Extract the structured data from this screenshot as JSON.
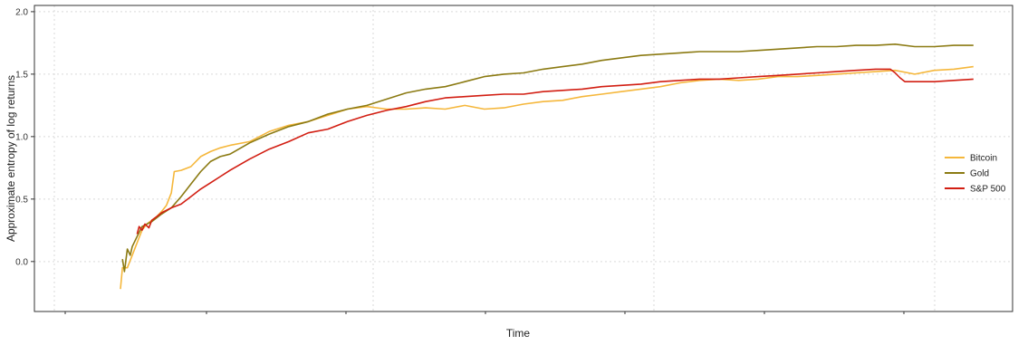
{
  "chart_data": {
    "type": "line",
    "title": "",
    "xlabel": "Time",
    "ylabel": "Approximate entropy of log returns",
    "x_range": [
      0,
      1
    ],
    "ylim": [
      -0.4,
      2.05
    ],
    "yticks": [
      0.0,
      0.5,
      1.0,
      1.5,
      2.0
    ],
    "ytick_labels": [
      "0.0",
      "0.5",
      "1.0",
      "1.5",
      "2.0"
    ],
    "grid": true,
    "legend_position": "right",
    "series": [
      {
        "name": "Bitcoin",
        "color": "#F5B73B",
        "points": [
          [
            0.088,
            -0.22
          ],
          [
            0.09,
            -0.05
          ],
          [
            0.095,
            -0.05
          ],
          [
            0.1,
            0.05
          ],
          [
            0.105,
            0.15
          ],
          [
            0.11,
            0.25
          ],
          [
            0.115,
            0.3
          ],
          [
            0.12,
            0.33
          ],
          [
            0.125,
            0.36
          ],
          [
            0.13,
            0.4
          ],
          [
            0.135,
            0.45
          ],
          [
            0.14,
            0.55
          ],
          [
            0.143,
            0.72
          ],
          [
            0.15,
            0.73
          ],
          [
            0.16,
            0.76
          ],
          [
            0.17,
            0.84
          ],
          [
            0.18,
            0.88
          ],
          [
            0.19,
            0.91
          ],
          [
            0.2,
            0.93
          ],
          [
            0.22,
            0.96
          ],
          [
            0.24,
            1.04
          ],
          [
            0.26,
            1.09
          ],
          [
            0.28,
            1.12
          ],
          [
            0.3,
            1.17
          ],
          [
            0.32,
            1.22
          ],
          [
            0.34,
            1.24
          ],
          [
            0.36,
            1.22
          ],
          [
            0.38,
            1.22
          ],
          [
            0.4,
            1.23
          ],
          [
            0.42,
            1.22
          ],
          [
            0.44,
            1.25
          ],
          [
            0.46,
            1.22
          ],
          [
            0.48,
            1.23
          ],
          [
            0.5,
            1.26
          ],
          [
            0.52,
            1.28
          ],
          [
            0.54,
            1.29
          ],
          [
            0.56,
            1.32
          ],
          [
            0.58,
            1.34
          ],
          [
            0.6,
            1.36
          ],
          [
            0.62,
            1.38
          ],
          [
            0.64,
            1.4
          ],
          [
            0.66,
            1.43
          ],
          [
            0.68,
            1.45
          ],
          [
            0.7,
            1.46
          ],
          [
            0.72,
            1.45
          ],
          [
            0.74,
            1.46
          ],
          [
            0.76,
            1.48
          ],
          [
            0.78,
            1.48
          ],
          [
            0.8,
            1.49
          ],
          [
            0.82,
            1.5
          ],
          [
            0.84,
            1.51
          ],
          [
            0.86,
            1.52
          ],
          [
            0.88,
            1.53
          ],
          [
            0.9,
            1.5
          ],
          [
            0.92,
            1.53
          ],
          [
            0.94,
            1.54
          ],
          [
            0.96,
            1.56
          ]
        ]
      },
      {
        "name": "Gold",
        "color": "#8B7A12",
        "points": [
          [
            0.09,
            0.02
          ],
          [
            0.092,
            -0.08
          ],
          [
            0.095,
            0.1
          ],
          [
            0.098,
            0.05
          ],
          [
            0.1,
            0.12
          ],
          [
            0.105,
            0.2
          ],
          [
            0.11,
            0.28
          ],
          [
            0.12,
            0.32
          ],
          [
            0.13,
            0.38
          ],
          [
            0.14,
            0.43
          ],
          [
            0.15,
            0.52
          ],
          [
            0.16,
            0.62
          ],
          [
            0.17,
            0.72
          ],
          [
            0.18,
            0.8
          ],
          [
            0.19,
            0.84
          ],
          [
            0.2,
            0.86
          ],
          [
            0.22,
            0.95
          ],
          [
            0.24,
            1.02
          ],
          [
            0.26,
            1.08
          ],
          [
            0.28,
            1.12
          ],
          [
            0.3,
            1.18
          ],
          [
            0.32,
            1.22
          ],
          [
            0.34,
            1.25
          ],
          [
            0.36,
            1.3
          ],
          [
            0.38,
            1.35
          ],
          [
            0.4,
            1.38
          ],
          [
            0.42,
            1.4
          ],
          [
            0.44,
            1.44
          ],
          [
            0.46,
            1.48
          ],
          [
            0.48,
            1.5
          ],
          [
            0.5,
            1.51
          ],
          [
            0.52,
            1.54
          ],
          [
            0.54,
            1.56
          ],
          [
            0.56,
            1.58
          ],
          [
            0.58,
            1.61
          ],
          [
            0.6,
            1.63
          ],
          [
            0.62,
            1.65
          ],
          [
            0.64,
            1.66
          ],
          [
            0.66,
            1.67
          ],
          [
            0.68,
            1.68
          ],
          [
            0.7,
            1.68
          ],
          [
            0.72,
            1.68
          ],
          [
            0.74,
            1.69
          ],
          [
            0.76,
            1.7
          ],
          [
            0.78,
            1.71
          ],
          [
            0.8,
            1.72
          ],
          [
            0.82,
            1.72
          ],
          [
            0.84,
            1.73
          ],
          [
            0.86,
            1.73
          ],
          [
            0.88,
            1.74
          ],
          [
            0.9,
            1.72
          ],
          [
            0.92,
            1.72
          ],
          [
            0.94,
            1.73
          ],
          [
            0.96,
            1.73
          ]
        ]
      },
      {
        "name": "S&P 500",
        "color": "#D21E12",
        "points": [
          [
            0.105,
            0.22
          ],
          [
            0.107,
            0.28
          ],
          [
            0.11,
            0.25
          ],
          [
            0.113,
            0.3
          ],
          [
            0.117,
            0.27
          ],
          [
            0.12,
            0.33
          ],
          [
            0.125,
            0.36
          ],
          [
            0.13,
            0.39
          ],
          [
            0.14,
            0.43
          ],
          [
            0.15,
            0.46
          ],
          [
            0.16,
            0.52
          ],
          [
            0.17,
            0.58
          ],
          [
            0.18,
            0.63
          ],
          [
            0.19,
            0.68
          ],
          [
            0.2,
            0.73
          ],
          [
            0.22,
            0.82
          ],
          [
            0.24,
            0.9
          ],
          [
            0.26,
            0.96
          ],
          [
            0.28,
            1.03
          ],
          [
            0.3,
            1.06
          ],
          [
            0.32,
            1.12
          ],
          [
            0.34,
            1.17
          ],
          [
            0.36,
            1.21
          ],
          [
            0.38,
            1.24
          ],
          [
            0.4,
            1.28
          ],
          [
            0.42,
            1.31
          ],
          [
            0.44,
            1.32
          ],
          [
            0.46,
            1.33
          ],
          [
            0.48,
            1.34
          ],
          [
            0.5,
            1.34
          ],
          [
            0.52,
            1.36
          ],
          [
            0.54,
            1.37
          ],
          [
            0.56,
            1.38
          ],
          [
            0.58,
            1.4
          ],
          [
            0.6,
            1.41
          ],
          [
            0.62,
            1.42
          ],
          [
            0.64,
            1.44
          ],
          [
            0.66,
            1.45
          ],
          [
            0.68,
            1.46
          ],
          [
            0.7,
            1.46
          ],
          [
            0.72,
            1.47
          ],
          [
            0.74,
            1.48
          ],
          [
            0.76,
            1.49
          ],
          [
            0.78,
            1.5
          ],
          [
            0.8,
            1.51
          ],
          [
            0.82,
            1.52
          ],
          [
            0.84,
            1.53
          ],
          [
            0.86,
            1.54
          ],
          [
            0.875,
            1.54
          ],
          [
            0.88,
            1.51
          ],
          [
            0.885,
            1.47
          ],
          [
            0.89,
            1.44
          ],
          [
            0.9,
            1.44
          ],
          [
            0.92,
            1.44
          ],
          [
            0.94,
            1.45
          ],
          [
            0.96,
            1.46
          ]
        ]
      }
    ]
  }
}
